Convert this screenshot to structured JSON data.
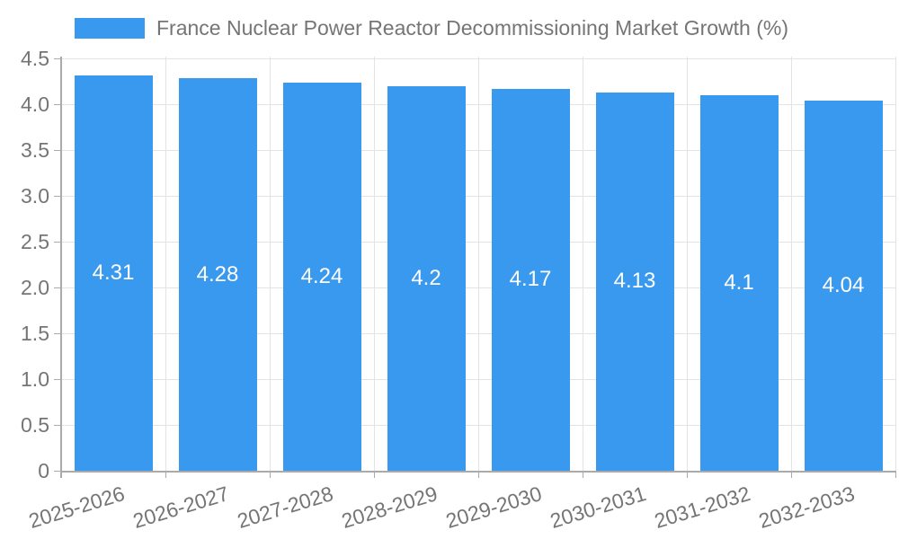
{
  "legend": {
    "label": "France Nuclear Power Reactor Decommissioning Market Growth (%)"
  },
  "chart_data": {
    "type": "bar",
    "title": "France Nuclear Power Reactor Decommissioning Market Growth (%)",
    "categories": [
      "2025-2026",
      "2026-2027",
      "2027-2028",
      "2028-2029",
      "2029-2030",
      "2030-2031",
      "2031-2032",
      "2032-2033"
    ],
    "values": [
      4.31,
      4.28,
      4.24,
      4.2,
      4.17,
      4.13,
      4.1,
      4.04
    ],
    "value_labels": [
      "4.31",
      "4.28",
      "4.24",
      "4.2",
      "4.17",
      "4.13",
      "4.1",
      "4.04"
    ],
    "xlabel": "",
    "ylabel": "",
    "ylim": [
      0,
      4.5
    ],
    "ytick_step": 0.5,
    "ytick_labels": [
      "0",
      "0.5",
      "1.0",
      "1.5",
      "2.0",
      "2.5",
      "3.0",
      "3.5",
      "4.0",
      "4.5"
    ],
    "grid": true,
    "legend_position": "top-left",
    "colors": {
      "bar": "#3999ee",
      "value_text": "#ffffff",
      "axis_text": "#757575",
      "grid_line": "#e3e3e3",
      "axis_line": "#aaaaaa"
    }
  }
}
